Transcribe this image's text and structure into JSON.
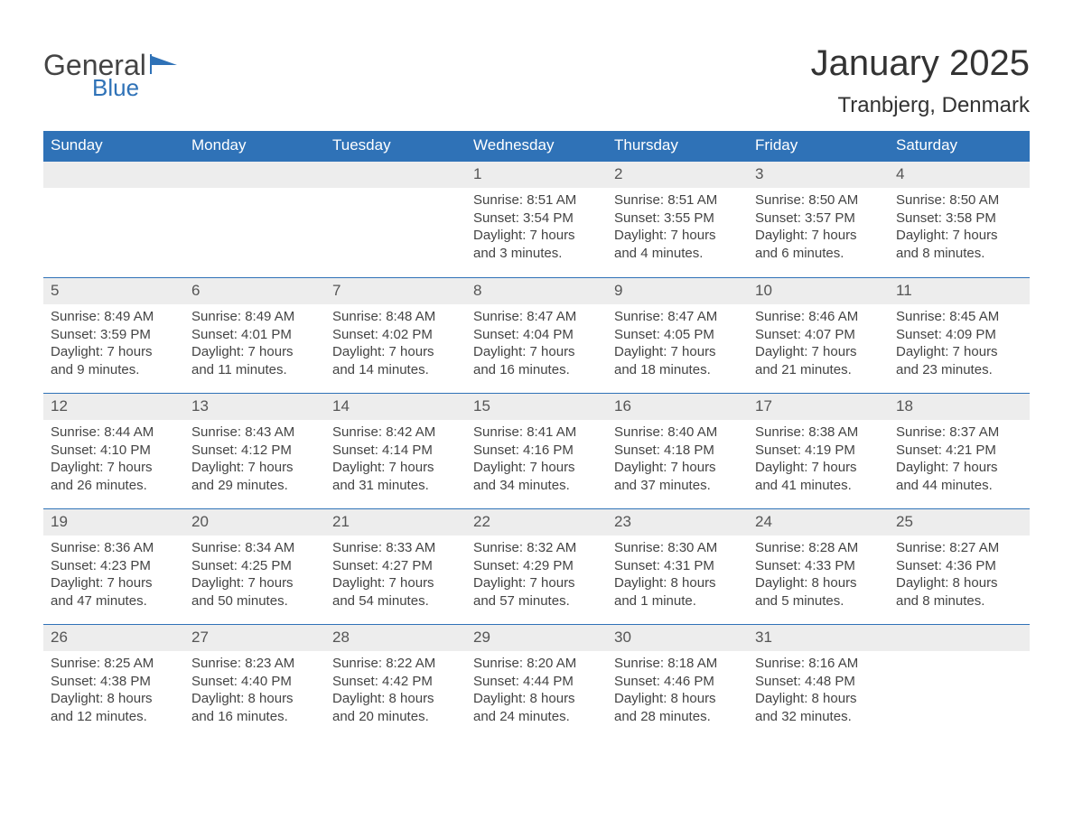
{
  "logo": {
    "general": "General",
    "blue": "Blue"
  },
  "title": "January 2025",
  "location": "Tranbjerg, Denmark",
  "colors": {
    "header_bg": "#2f72b7",
    "header_text": "#ffffff",
    "daynum_bg": "#ededed",
    "rule": "#2f72b7",
    "body_text": "#444444"
  },
  "day_headers": [
    "Sunday",
    "Monday",
    "Tuesday",
    "Wednesday",
    "Thursday",
    "Friday",
    "Saturday"
  ],
  "weeks": [
    [
      null,
      null,
      null,
      {
        "n": "1",
        "sunrise": "Sunrise: 8:51 AM",
        "sunset": "Sunset: 3:54 PM",
        "dl1": "Daylight: 7 hours",
        "dl2": "and 3 minutes."
      },
      {
        "n": "2",
        "sunrise": "Sunrise: 8:51 AM",
        "sunset": "Sunset: 3:55 PM",
        "dl1": "Daylight: 7 hours",
        "dl2": "and 4 minutes."
      },
      {
        "n": "3",
        "sunrise": "Sunrise: 8:50 AM",
        "sunset": "Sunset: 3:57 PM",
        "dl1": "Daylight: 7 hours",
        "dl2": "and 6 minutes."
      },
      {
        "n": "4",
        "sunrise": "Sunrise: 8:50 AM",
        "sunset": "Sunset: 3:58 PM",
        "dl1": "Daylight: 7 hours",
        "dl2": "and 8 minutes."
      }
    ],
    [
      {
        "n": "5",
        "sunrise": "Sunrise: 8:49 AM",
        "sunset": "Sunset: 3:59 PM",
        "dl1": "Daylight: 7 hours",
        "dl2": "and 9 minutes."
      },
      {
        "n": "6",
        "sunrise": "Sunrise: 8:49 AM",
        "sunset": "Sunset: 4:01 PM",
        "dl1": "Daylight: 7 hours",
        "dl2": "and 11 minutes."
      },
      {
        "n": "7",
        "sunrise": "Sunrise: 8:48 AM",
        "sunset": "Sunset: 4:02 PM",
        "dl1": "Daylight: 7 hours",
        "dl2": "and 14 minutes."
      },
      {
        "n": "8",
        "sunrise": "Sunrise: 8:47 AM",
        "sunset": "Sunset: 4:04 PM",
        "dl1": "Daylight: 7 hours",
        "dl2": "and 16 minutes."
      },
      {
        "n": "9",
        "sunrise": "Sunrise: 8:47 AM",
        "sunset": "Sunset: 4:05 PM",
        "dl1": "Daylight: 7 hours",
        "dl2": "and 18 minutes."
      },
      {
        "n": "10",
        "sunrise": "Sunrise: 8:46 AM",
        "sunset": "Sunset: 4:07 PM",
        "dl1": "Daylight: 7 hours",
        "dl2": "and 21 minutes."
      },
      {
        "n": "11",
        "sunrise": "Sunrise: 8:45 AM",
        "sunset": "Sunset: 4:09 PM",
        "dl1": "Daylight: 7 hours",
        "dl2": "and 23 minutes."
      }
    ],
    [
      {
        "n": "12",
        "sunrise": "Sunrise: 8:44 AM",
        "sunset": "Sunset: 4:10 PM",
        "dl1": "Daylight: 7 hours",
        "dl2": "and 26 minutes."
      },
      {
        "n": "13",
        "sunrise": "Sunrise: 8:43 AM",
        "sunset": "Sunset: 4:12 PM",
        "dl1": "Daylight: 7 hours",
        "dl2": "and 29 minutes."
      },
      {
        "n": "14",
        "sunrise": "Sunrise: 8:42 AM",
        "sunset": "Sunset: 4:14 PM",
        "dl1": "Daylight: 7 hours",
        "dl2": "and 31 minutes."
      },
      {
        "n": "15",
        "sunrise": "Sunrise: 8:41 AM",
        "sunset": "Sunset: 4:16 PM",
        "dl1": "Daylight: 7 hours",
        "dl2": "and 34 minutes."
      },
      {
        "n": "16",
        "sunrise": "Sunrise: 8:40 AM",
        "sunset": "Sunset: 4:18 PM",
        "dl1": "Daylight: 7 hours",
        "dl2": "and 37 minutes."
      },
      {
        "n": "17",
        "sunrise": "Sunrise: 8:38 AM",
        "sunset": "Sunset: 4:19 PM",
        "dl1": "Daylight: 7 hours",
        "dl2": "and 41 minutes."
      },
      {
        "n": "18",
        "sunrise": "Sunrise: 8:37 AM",
        "sunset": "Sunset: 4:21 PM",
        "dl1": "Daylight: 7 hours",
        "dl2": "and 44 minutes."
      }
    ],
    [
      {
        "n": "19",
        "sunrise": "Sunrise: 8:36 AM",
        "sunset": "Sunset: 4:23 PM",
        "dl1": "Daylight: 7 hours",
        "dl2": "and 47 minutes."
      },
      {
        "n": "20",
        "sunrise": "Sunrise: 8:34 AM",
        "sunset": "Sunset: 4:25 PM",
        "dl1": "Daylight: 7 hours",
        "dl2": "and 50 minutes."
      },
      {
        "n": "21",
        "sunrise": "Sunrise: 8:33 AM",
        "sunset": "Sunset: 4:27 PM",
        "dl1": "Daylight: 7 hours",
        "dl2": "and 54 minutes."
      },
      {
        "n": "22",
        "sunrise": "Sunrise: 8:32 AM",
        "sunset": "Sunset: 4:29 PM",
        "dl1": "Daylight: 7 hours",
        "dl2": "and 57 minutes."
      },
      {
        "n": "23",
        "sunrise": "Sunrise: 8:30 AM",
        "sunset": "Sunset: 4:31 PM",
        "dl1": "Daylight: 8 hours",
        "dl2": "and 1 minute."
      },
      {
        "n": "24",
        "sunrise": "Sunrise: 8:28 AM",
        "sunset": "Sunset: 4:33 PM",
        "dl1": "Daylight: 8 hours",
        "dl2": "and 5 minutes."
      },
      {
        "n": "25",
        "sunrise": "Sunrise: 8:27 AM",
        "sunset": "Sunset: 4:36 PM",
        "dl1": "Daylight: 8 hours",
        "dl2": "and 8 minutes."
      }
    ],
    [
      {
        "n": "26",
        "sunrise": "Sunrise: 8:25 AM",
        "sunset": "Sunset: 4:38 PM",
        "dl1": "Daylight: 8 hours",
        "dl2": "and 12 minutes."
      },
      {
        "n": "27",
        "sunrise": "Sunrise: 8:23 AM",
        "sunset": "Sunset: 4:40 PM",
        "dl1": "Daylight: 8 hours",
        "dl2": "and 16 minutes."
      },
      {
        "n": "28",
        "sunrise": "Sunrise: 8:22 AM",
        "sunset": "Sunset: 4:42 PM",
        "dl1": "Daylight: 8 hours",
        "dl2": "and 20 minutes."
      },
      {
        "n": "29",
        "sunrise": "Sunrise: 8:20 AM",
        "sunset": "Sunset: 4:44 PM",
        "dl1": "Daylight: 8 hours",
        "dl2": "and 24 minutes."
      },
      {
        "n": "30",
        "sunrise": "Sunrise: 8:18 AM",
        "sunset": "Sunset: 4:46 PM",
        "dl1": "Daylight: 8 hours",
        "dl2": "and 28 minutes."
      },
      {
        "n": "31",
        "sunrise": "Sunrise: 8:16 AM",
        "sunset": "Sunset: 4:48 PM",
        "dl1": "Daylight: 8 hours",
        "dl2": "and 32 minutes."
      },
      null
    ]
  ]
}
